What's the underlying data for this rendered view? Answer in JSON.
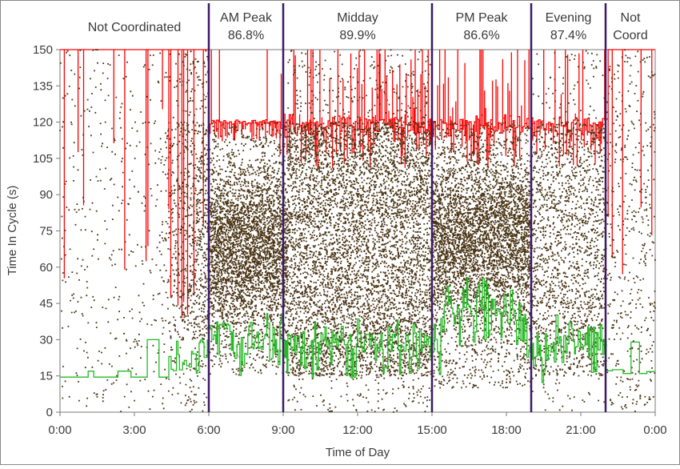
{
  "chart_data": {
    "type": "scatter",
    "title": "",
    "xlabel": "Time of Day",
    "ylabel": "Time In Cycle (s)",
    "xlim": [
      0,
      24
    ],
    "ylim": [
      0,
      150
    ],
    "x_ticks": [
      {
        "value": 0,
        "label": "0:00"
      },
      {
        "value": 3,
        "label": "3:00"
      },
      {
        "value": 6,
        "label": "6:00"
      },
      {
        "value": 9,
        "label": "9:00"
      },
      {
        "value": 12,
        "label": "12:00"
      },
      {
        "value": 15,
        "label": "15:00"
      },
      {
        "value": 18,
        "label": "18:00"
      },
      {
        "value": 21,
        "label": "21:00"
      },
      {
        "value": 24,
        "label": "0:00"
      }
    ],
    "y_ticks": [
      0,
      15,
      30,
      45,
      60,
      75,
      90,
      105,
      120,
      135,
      150
    ],
    "grid": false,
    "period_boundaries": [
      6,
      9,
      15,
      19,
      22
    ],
    "periods": [
      {
        "name": "Not Coordinated",
        "percent": "",
        "start": 0,
        "end": 6
      },
      {
        "name": "AM Peak",
        "percent": "86.8%",
        "start": 6,
        "end": 9
      },
      {
        "name": "Midday",
        "percent": "89.9%",
        "start": 9,
        "end": 15
      },
      {
        "name": "PM Peak",
        "percent": "86.6%",
        "start": 15,
        "end": 19
      },
      {
        "name": "Evening",
        "percent": "87.4%",
        "start": 19,
        "end": 22
      },
      {
        "name": "Not",
        "percent": "Coord",
        "start": 22,
        "end": 24
      }
    ],
    "series": [
      {
        "type": "step-line",
        "role": "cycle length (red)",
        "typical_value": 120
      },
      {
        "type": "scatter",
        "role": "vehicle arrivals (brown points)"
      },
      {
        "type": "step-line",
        "role": "green end (green)",
        "typical_value": 15
      }
    ],
    "colors": {
      "red_line": "#ff0000",
      "green_line": "#22bb22",
      "points": "#4a3414",
      "period_divider": "#3d1a66",
      "frame": "#888888",
      "text": "#3a3a3a"
    }
  }
}
